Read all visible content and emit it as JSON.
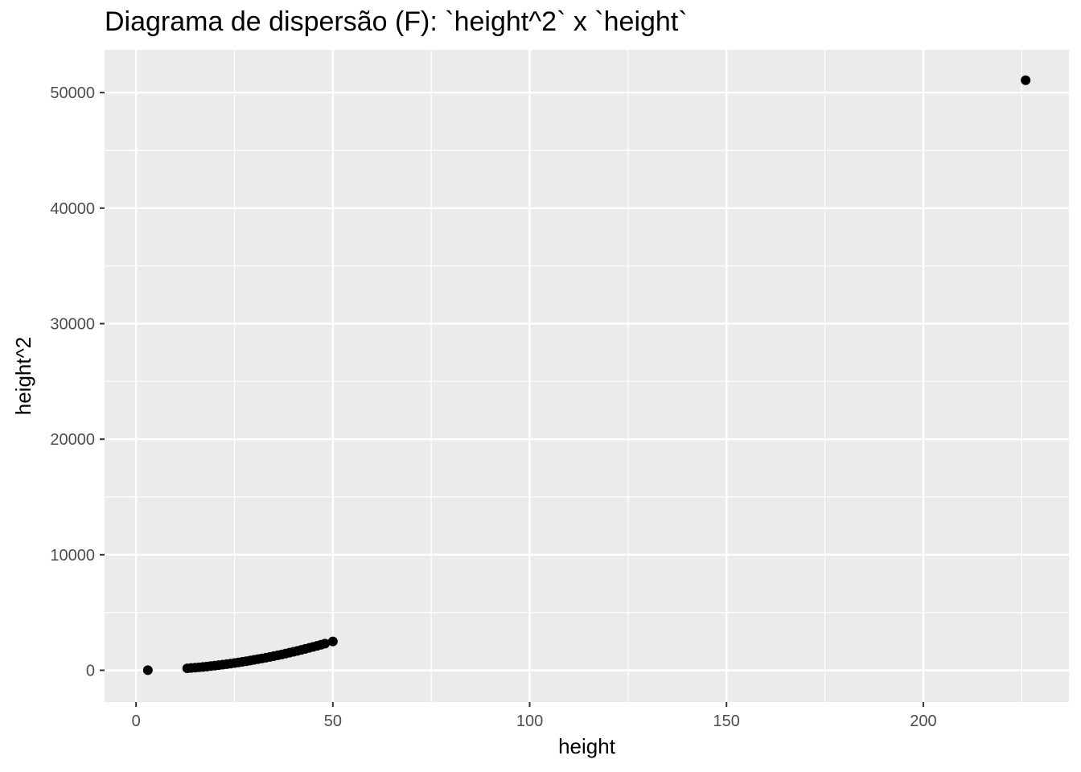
{
  "chart_data": {
    "type": "scatter",
    "title": "Diagrama de dispersão (F): `height^2` x `height`",
    "xlabel": "height",
    "ylabel": "height^2",
    "xlim": [
      -8,
      237
    ],
    "ylim": [
      -2750,
      53700
    ],
    "x_ticks": [
      0,
      50,
      100,
      150,
      200
    ],
    "x_tick_labels": [
      "0",
      "50",
      "100",
      "150",
      "200"
    ],
    "y_ticks": [
      0,
      10000,
      20000,
      30000,
      40000,
      50000
    ],
    "y_tick_labels": [
      "0",
      "10000",
      "20000",
      "30000",
      "40000",
      "50000"
    ],
    "grid": true,
    "background": "#ebebeb",
    "grid_color": "#ffffff",
    "point_color": "#000000",
    "series": [
      {
        "x": [
          3,
          13,
          14,
          15,
          16,
          17,
          18,
          19,
          20,
          21,
          22,
          23,
          24,
          25,
          26,
          27,
          28,
          29,
          30,
          31,
          32,
          33,
          34,
          35,
          36,
          37,
          38,
          39,
          40,
          41,
          42,
          43,
          44,
          45,
          46,
          47,
          48,
          50,
          226
        ],
        "y": [
          9,
          169,
          196,
          225,
          256,
          289,
          324,
          361,
          400,
          441,
          484,
          529,
          576,
          625,
          676,
          729,
          784,
          841,
          900,
          961,
          1024,
          1089,
          1156,
          1225,
          1296,
          1369,
          1444,
          1521,
          1600,
          1681,
          1764,
          1849,
          1936,
          2025,
          2116,
          2209,
          2304,
          2500,
          51076
        ]
      }
    ]
  }
}
